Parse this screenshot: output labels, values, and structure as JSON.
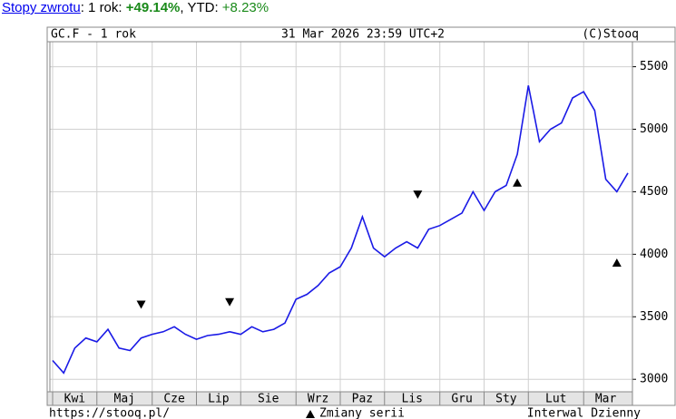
{
  "header": {
    "link": "Stopy zwrotu",
    "label1": ": 1 rok: ",
    "value1": "+49.14%",
    "label2": ", YTD: ",
    "value2": "+8.23%"
  },
  "chart_data": {
    "type": "line",
    "title": "GC.F - 1 rok",
    "subtitle": "31 Mar 2026 23:59 UTC+2",
    "credit": "(C)Stooq",
    "footer_left": "https://stooq.pl/",
    "legend_label": "Zmiany serii",
    "footer_right": "Interwal Dzienny",
    "categories": [
      "Kwi",
      null,
      null,
      null,
      "Maj",
      null,
      null,
      null,
      null,
      "Cze",
      null,
      null,
      null,
      "Lip",
      null,
      null,
      null,
      "Sie",
      null,
      null,
      null,
      null,
      "Wrz",
      null,
      null,
      null,
      "Paz",
      null,
      null,
      null,
      "Lis",
      null,
      null,
      null,
      null,
      "Gru",
      null,
      null,
      null,
      "Sty",
      null,
      null,
      null,
      "Lut",
      null,
      null,
      null,
      null,
      "Mar",
      null,
      null,
      null,
      null
    ],
    "series": [
      {
        "name": "GC.F",
        "color": "#1a1ae6",
        "values": [
          3150,
          3050,
          3250,
          3330,
          3300,
          3400,
          3250,
          3230,
          3330,
          3360,
          3380,
          3420,
          3360,
          3320,
          3350,
          3360,
          3380,
          3360,
          3420,
          3380,
          3400,
          3450,
          3640,
          3680,
          3750,
          3850,
          3900,
          4050,
          4300,
          4050,
          3980,
          4050,
          4100,
          4050,
          4200,
          4230,
          4280,
          4330,
          4500,
          4350,
          4500,
          4550,
          4800,
          5350,
          4900,
          5000,
          5050,
          5250,
          5300,
          5150,
          4600,
          4500,
          4650
        ]
      }
    ],
    "series_changes": [
      {
        "index": 8,
        "value": 3600,
        "direction": "down"
      },
      {
        "index": 16,
        "value": 3620,
        "direction": "down"
      },
      {
        "index": 33,
        "value": 4480,
        "direction": "down"
      },
      {
        "index": 42,
        "value": 4570,
        "direction": "up"
      },
      {
        "index": 51,
        "value": 3930,
        "direction": "up"
      }
    ],
    "ylim": [
      2900,
      5700
    ],
    "yticks": [
      3000,
      3500,
      4000,
      4500,
      5000,
      5500
    ],
    "grid": true
  }
}
